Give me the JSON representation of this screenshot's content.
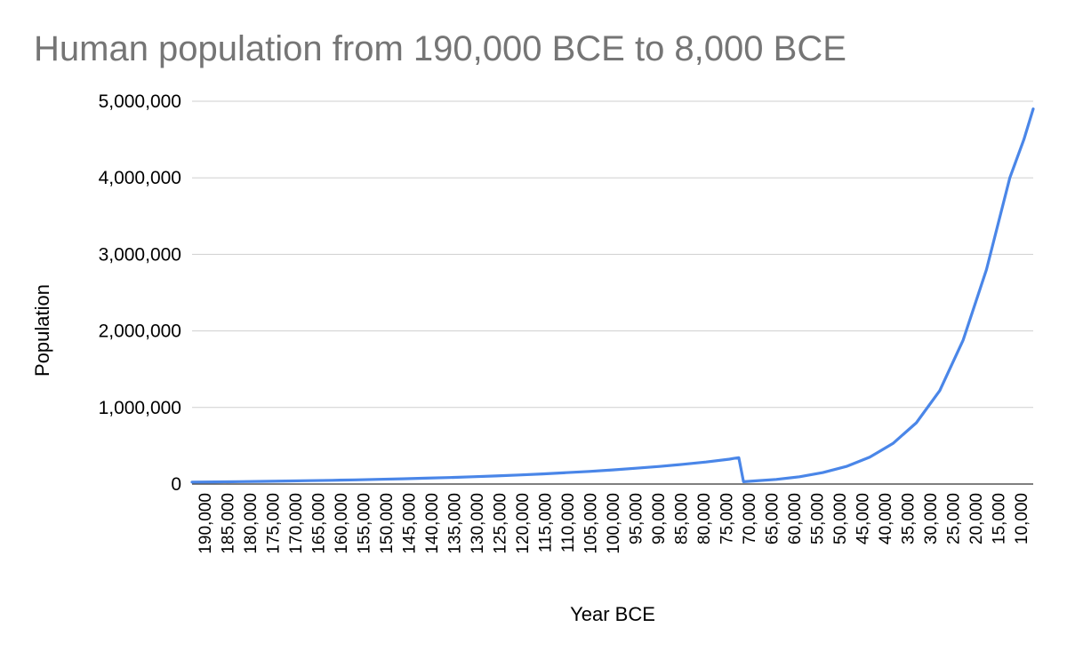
{
  "chart_data": {
    "type": "line",
    "title": "Human population from 190,000 BCE to 8,000 BCE",
    "xlabel": "Year BCE",
    "ylabel": "Population",
    "ylim": [
      0,
      5000000
    ],
    "xlim": [
      190000,
      10000
    ],
    "yticks": [
      0,
      1000000,
      2000000,
      3000000,
      4000000,
      5000000
    ],
    "ytick_labels": [
      "0",
      "1,000,000",
      "2,000,000",
      "3,000,000",
      "4,000,000",
      "5,000,000"
    ],
    "xtick_labels": [
      "190,000",
      "185,000",
      "180,000",
      "175,000",
      "170,000",
      "165,000",
      "160,000",
      "155,000",
      "150,000",
      "145,000",
      "140,000",
      "135,000",
      "130,000",
      "125,000",
      "120,000",
      "115,000",
      "110,000",
      "105,000",
      "100,000",
      "95,000",
      "90,000",
      "85,000",
      "80,000",
      "75,000",
      "70,000",
      "65,000",
      "60,000",
      "55,000",
      "50,000",
      "45,000",
      "40,000",
      "35,000",
      "30,000",
      "25,000",
      "20,000",
      "15,000",
      "10,000"
    ],
    "grid": true,
    "legend": "none",
    "line_color": "#4a86e8",
    "series": [
      {
        "x": [
          190000,
          185000,
          180000,
          175000,
          170000,
          165000,
          160000,
          155000,
          150000,
          145000,
          140000,
          135000,
          130000,
          125000,
          120000,
          115000,
          110000,
          105000,
          100000,
          95000,
          90000,
          85000,
          80000,
          75000,
          74000,
          73000,
          72000,
          70000,
          65000,
          60000,
          55000,
          50000,
          45000,
          40000,
          35000,
          30000,
          25000,
          20000,
          15000,
          12000,
          10000
        ],
        "y": [
          25000,
          28000,
          31000,
          35000,
          39000,
          44000,
          49000,
          55000,
          61000,
          68000,
          76000,
          85000,
          95000,
          106000,
          118000,
          132000,
          148000,
          165000,
          185000,
          206000,
          230000,
          257000,
          288000,
          325000,
          335000,
          345000,
          30000,
          40000,
          60000,
          95000,
          150000,
          230000,
          350000,
          530000,
          800000,
          1220000,
          1880000,
          2800000,
          4000000,
          4500000,
          4900000
        ]
      }
    ]
  }
}
